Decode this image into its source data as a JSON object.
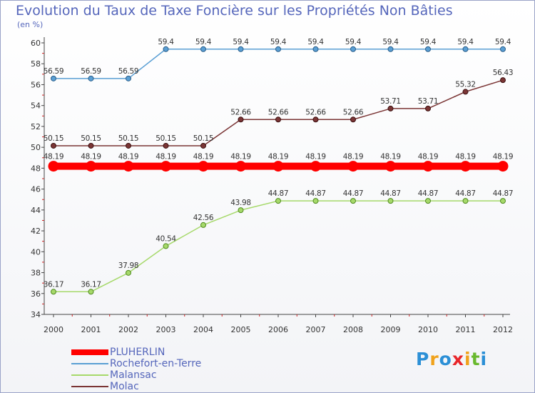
{
  "title": "Evolution du Taux de Taxe Foncière sur les Propriétés Non Bâties",
  "unit_label": "(en %)",
  "logo": {
    "letters": [
      "P",
      "r",
      "o",
      "x",
      "i",
      "t",
      "i"
    ],
    "colors": [
      "#2b8fd6",
      "#f0a21c",
      "#2b8fd6",
      "#e8262b",
      "#f0a21c",
      "#69b92f",
      "#2b8fd6"
    ]
  },
  "chart_data": {
    "type": "line",
    "title": "Evolution du Taux de Taxe Foncière sur les Propriétés Non Bâties",
    "ylabel": "(en %)",
    "x": [
      "2000",
      "2001",
      "2002",
      "2003",
      "2004",
      "2005",
      "2006",
      "2007",
      "2008",
      "2009",
      "2010",
      "2011",
      "2012"
    ],
    "ylim": [
      34,
      60
    ],
    "yticks": [
      "34",
      "36",
      "38",
      "40",
      "42",
      "44",
      "46",
      "48",
      "50",
      "52",
      "54",
      "56",
      "58",
      "60"
    ],
    "grid": false,
    "legend_position": "bottom-left",
    "series": [
      {
        "name": "PLUHERLIN",
        "color": "#ff0000",
        "values": [
          48.19,
          48.19,
          48.19,
          48.19,
          48.19,
          48.19,
          48.19,
          48.19,
          48.19,
          48.19,
          48.19,
          48.19,
          48.19
        ],
        "labels": [
          "48.19",
          "48.19",
          "48.19",
          "48.19",
          "48.19",
          "48.19",
          "48.19",
          "48.19",
          "48.19",
          "48.19",
          "48.19",
          "48.19",
          "48.19"
        ]
      },
      {
        "name": "Rochefort-en-Terre",
        "color": "#5a9fd4",
        "values": [
          56.59,
          56.59,
          56.59,
          59.4,
          59.4,
          59.4,
          59.4,
          59.4,
          59.4,
          59.4,
          59.4,
          59.4,
          59.4
        ],
        "labels": [
          "56.59",
          "56.59",
          "56.59",
          "59.4",
          "59.4",
          "59.4",
          "59.4",
          "59.4",
          "59.4",
          "59.4",
          "59.4",
          "59.4",
          "59.4"
        ]
      },
      {
        "name": "Malansac",
        "color": "#a6d96a",
        "values": [
          36.17,
          36.17,
          37.98,
          40.54,
          42.56,
          43.98,
          44.87,
          44.87,
          44.87,
          44.87,
          44.87,
          44.87,
          44.87
        ],
        "labels": [
          "36.17",
          "36.17",
          "37.98",
          "40.54",
          "42.56",
          "43.98",
          "44.87",
          "44.87",
          "44.87",
          "44.87",
          "44.87",
          "44.87",
          "44.87"
        ]
      },
      {
        "name": "Molac",
        "color": "#7b3535",
        "values": [
          50.15,
          50.15,
          50.15,
          50.15,
          50.15,
          52.66,
          52.66,
          52.66,
          52.66,
          53.71,
          53.71,
          55.32,
          56.43
        ],
        "labels": [
          "50.15",
          "50.15",
          "50.15",
          "50.15",
          "50.15",
          "52.66",
          "52.66",
          "52.66",
          "52.66",
          "53.71",
          "53.71",
          "55.32",
          "56.43"
        ]
      }
    ]
  }
}
